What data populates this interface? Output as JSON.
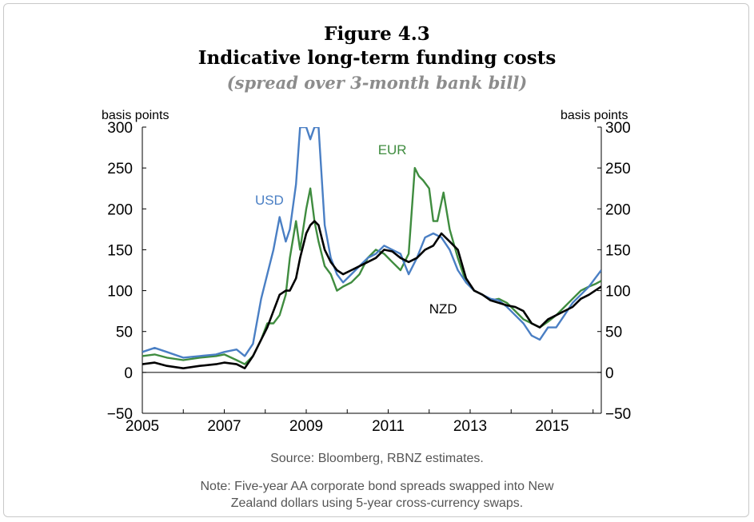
{
  "figure": {
    "number": "Figure 4.3",
    "title": "Indicative long-term funding costs",
    "subtitle": "(spread over 3-month bank bill)",
    "source": "Source: Bloomberg, RBNZ estimates.",
    "note_line1": "Note: Five-year AA corporate bond spreads swapped into New",
    "note_line2": "Zealand dollars using 5-year cross-currency swaps."
  },
  "colors": {
    "USD": "#4a7fc4",
    "EUR": "#3f8c3f",
    "NZD": "#000000"
  },
  "chart_data": {
    "type": "line",
    "title": "Indicative long-term funding costs",
    "subtitle": "(spread over 3-month bank bill)",
    "ylabel_left": "basis points",
    "ylabel_right": "basis points",
    "ylim": [
      -50,
      300
    ],
    "xlim": [
      2005,
      2016.2
    ],
    "yticks": [
      -50,
      0,
      50,
      100,
      150,
      200,
      250,
      300
    ],
    "ytick_labels": [
      "−50",
      "0",
      "50",
      "100",
      "150",
      "200",
      "250",
      "300"
    ],
    "xticks": [
      2005,
      2007,
      2009,
      2011,
      2013,
      2015
    ],
    "xtick_labels": [
      "2005",
      "2007",
      "2009",
      "2011",
      "2013",
      "2015"
    ],
    "zero_line": true,
    "series": [
      {
        "name": "USD",
        "label": "USD",
        "x": [
          2005.0,
          2005.3,
          2005.6,
          2006.0,
          2006.4,
          2006.8,
          2007.0,
          2007.3,
          2007.5,
          2007.7,
          2007.9,
          2008.05,
          2008.2,
          2008.35,
          2008.5,
          2008.6,
          2008.75,
          2008.85,
          2009.0,
          2009.1,
          2009.2,
          2009.3,
          2009.45,
          2009.6,
          2009.75,
          2009.9,
          2010.1,
          2010.3,
          2010.5,
          2010.7,
          2010.9,
          2011.1,
          2011.3,
          2011.5,
          2011.7,
          2011.9,
          2012.1,
          2012.3,
          2012.5,
          2012.7,
          2012.9,
          2013.1,
          2013.3,
          2013.5,
          2013.7,
          2013.9,
          2014.1,
          2014.3,
          2014.5,
          2014.7,
          2014.9,
          2015.1,
          2015.3,
          2015.5,
          2015.7,
          2015.9,
          2016.05,
          2016.2
        ],
        "values": [
          25,
          30,
          25,
          18,
          20,
          22,
          25,
          28,
          20,
          35,
          90,
          120,
          150,
          190,
          160,
          175,
          230,
          300,
          300,
          285,
          300,
          300,
          180,
          140,
          120,
          110,
          120,
          130,
          140,
          145,
          155,
          150,
          145,
          120,
          140,
          165,
          170,
          165,
          150,
          125,
          110,
          100,
          95,
          90,
          88,
          80,
          70,
          60,
          45,
          40,
          55,
          55,
          70,
          85,
          95,
          105,
          115,
          125
        ]
      },
      {
        "name": "EUR",
        "label": "EUR",
        "x": [
          2005.0,
          2005.3,
          2005.6,
          2006.0,
          2006.4,
          2006.8,
          2007.0,
          2007.3,
          2007.5,
          2007.7,
          2007.9,
          2008.05,
          2008.2,
          2008.35,
          2008.5,
          2008.6,
          2008.75,
          2008.85,
          2009.0,
          2009.1,
          2009.2,
          2009.3,
          2009.45,
          2009.6,
          2009.75,
          2009.9,
          2010.1,
          2010.3,
          2010.5,
          2010.7,
          2010.9,
          2011.1,
          2011.3,
          2011.5,
          2011.65,
          2011.75,
          2011.85,
          2012.0,
          2012.1,
          2012.2,
          2012.35,
          2012.5,
          2012.7,
          2012.9,
          2013.1,
          2013.3,
          2013.5,
          2013.7,
          2013.9,
          2014.1,
          2014.3,
          2014.5,
          2014.7,
          2014.9,
          2015.1,
          2015.3,
          2015.5,
          2015.7,
          2015.9,
          2016.05,
          2016.2
        ],
        "values": [
          20,
          22,
          18,
          15,
          18,
          20,
          22,
          15,
          10,
          20,
          40,
          60,
          60,
          70,
          95,
          140,
          185,
          150,
          200,
          225,
          185,
          160,
          130,
          120,
          100,
          105,
          110,
          120,
          140,
          150,
          145,
          135,
          125,
          145,
          250,
          240,
          235,
          225,
          185,
          185,
          220,
          175,
          140,
          110,
          100,
          95,
          88,
          90,
          85,
          75,
          65,
          60,
          55,
          62,
          70,
          80,
          90,
          100,
          105,
          108,
          112
        ]
      },
      {
        "name": "NZD",
        "label": "NZD",
        "x": [
          2005.0,
          2005.3,
          2005.6,
          2006.0,
          2006.4,
          2006.8,
          2007.0,
          2007.3,
          2007.5,
          2007.7,
          2007.9,
          2008.05,
          2008.2,
          2008.35,
          2008.5,
          2008.6,
          2008.75,
          2008.85,
          2009.0,
          2009.1,
          2009.2,
          2009.3,
          2009.45,
          2009.6,
          2009.75,
          2009.9,
          2010.1,
          2010.3,
          2010.5,
          2010.7,
          2010.9,
          2011.1,
          2011.3,
          2011.5,
          2011.7,
          2011.9,
          2012.1,
          2012.3,
          2012.5,
          2012.7,
          2012.9,
          2013.1,
          2013.3,
          2013.5,
          2013.7,
          2013.9,
          2014.1,
          2014.3,
          2014.5,
          2014.7,
          2014.9,
          2015.1,
          2015.3,
          2015.5,
          2015.7,
          2015.9,
          2016.05,
          2016.2
        ],
        "values": [
          10,
          12,
          8,
          5,
          8,
          10,
          12,
          10,
          5,
          20,
          40,
          55,
          75,
          95,
          100,
          100,
          115,
          140,
          170,
          180,
          185,
          180,
          150,
          135,
          125,
          120,
          125,
          130,
          135,
          140,
          150,
          148,
          140,
          135,
          140,
          150,
          155,
          170,
          160,
          150,
          115,
          100,
          95,
          88,
          85,
          82,
          80,
          75,
          60,
          55,
          65,
          70,
          75,
          80,
          90,
          95,
          100,
          105
        ]
      }
    ],
    "annotations": [
      {
        "text": "USD",
        "series": "USD"
      },
      {
        "text": "EUR",
        "series": "EUR"
      },
      {
        "text": "NZD",
        "series": "NZD"
      }
    ]
  }
}
